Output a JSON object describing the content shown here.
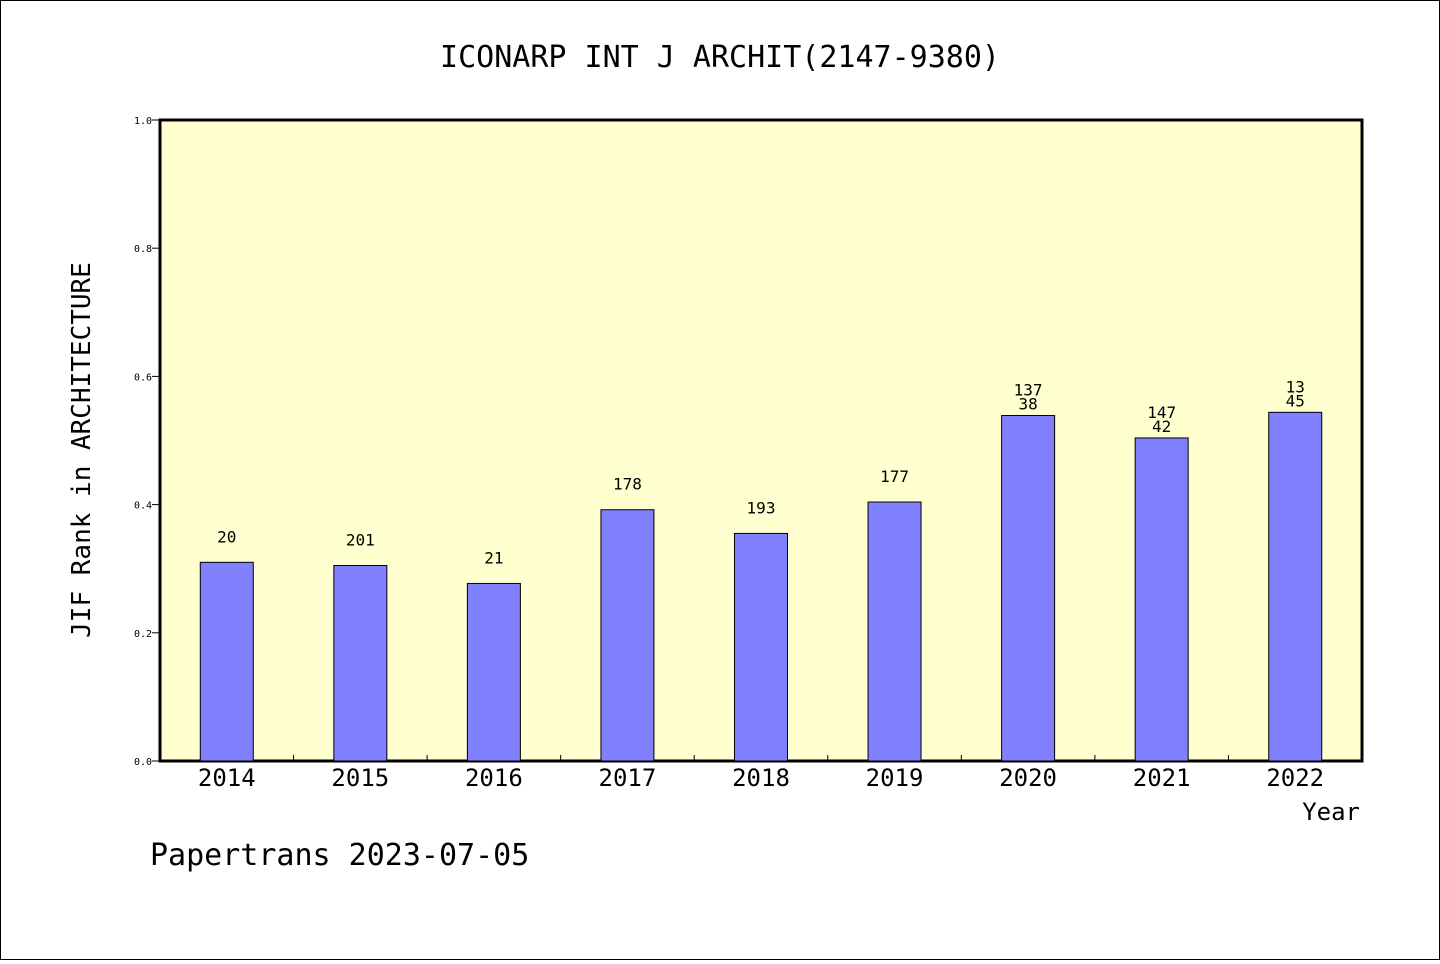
{
  "chart_data": {
    "type": "bar",
    "title": "ICONARP INT J ARCHIT(2147-9380)",
    "xlabel": "Year",
    "ylabel": "JIF Rank in ARCHITECTURE",
    "ylim": [
      0,
      1.0
    ],
    "yticks": [
      "0.0",
      "0.2",
      "0.4",
      "0.6",
      "0.8",
      "1.0"
    ],
    "categories": [
      "2014",
      "2015",
      "2016",
      "2017",
      "2018",
      "2019",
      "2020",
      "2021",
      "2022"
    ],
    "values": [
      0.31,
      0.305,
      0.277,
      0.392,
      0.355,
      0.404,
      0.539,
      0.504,
      0.544
    ],
    "labels": [
      [
        "20"
      ],
      [
        "201"
      ],
      [
        "21"
      ],
      [
        "178"
      ],
      [
        "193"
      ],
      [
        "177"
      ],
      [
        "137",
        "38"
      ],
      [
        "147",
        "42"
      ],
      [
        "13",
        "45"
      ]
    ],
    "grid": false,
    "colors": {
      "bar": "#8080ff",
      "plot_bg": "#ffffd0",
      "frame": "#000000"
    }
  },
  "footer": "Papertrans 2023-07-05"
}
